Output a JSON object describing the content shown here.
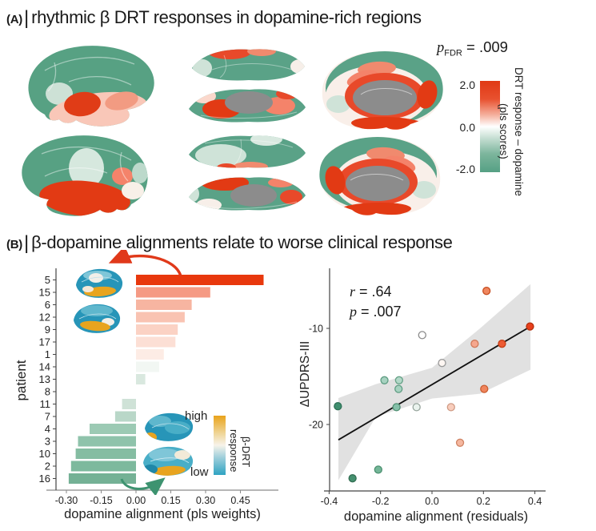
{
  "panelA": {
    "label": "(A)",
    "divider": "|",
    "title": "rhythmic β DRT responses in dopamine-rich regions",
    "stat": {
      "symbol": "p",
      "sub": "FDR",
      "value": " = .009"
    },
    "colorbar": {
      "tick_top": "2.0",
      "tick_mid": "0.0",
      "tick_bottom": "-2.0",
      "label_primary": "DRT response – dopamine",
      "label_secondary": "(pls scores)",
      "color_top": "#e03914",
      "color_mid": "#ffffff",
      "color_bottom": "#55a084",
      "excluded_color": "#8c8c8c"
    }
  },
  "panelB": {
    "label": "(B)",
    "divider": "|",
    "title": "β-dopamine alignments relate to worse clinical response",
    "inset_colorbar": {
      "high_label": "high",
      "low_label": "low",
      "label_line1": "β-DRT",
      "label_line2": "response",
      "color_high": "#e9a31b",
      "color_low": "#2fa3c2"
    },
    "scatter_stats": {
      "r_symbol": "r",
      "r_value": " = .64",
      "p_symbol": "p",
      "p_value": " = .007"
    }
  },
  "chart_data": [
    {
      "type": "bar",
      "orientation": "horizontal",
      "ylabel": "patient",
      "xlabel": "dopamine alignment (pls weights)",
      "categories": [
        "5",
        "15",
        "6",
        "12",
        "9",
        "17",
        "1",
        "14",
        "13",
        "8",
        "11",
        "7",
        "4",
        "3",
        "10",
        "2",
        "16"
      ],
      "values": [
        0.55,
        0.32,
        0.24,
        0.21,
        0.18,
        0.17,
        0.12,
        0.1,
        0.04,
        0,
        -0.06,
        -0.09,
        -0.2,
        -0.25,
        -0.26,
        -0.28,
        -0.29
      ],
      "colors": [
        "#e8380d",
        "#f59a84",
        "#f7b5a1",
        "#f9c3b2",
        "#fbd2c4",
        "#fcdfd5",
        "#fdece5",
        "#f2f7f3",
        "#d9e8df",
        "#ffffff",
        "#cfe2d7",
        "#b9d7c8",
        "#9ccab4",
        "#8fc3ab",
        "#85bda2",
        "#7db99d",
        "#74b195"
      ],
      "xticks": [
        "-0.30",
        "-0.15",
        "0.00",
        "0.15",
        "0.30",
        "0.45"
      ],
      "xlim": [
        -0.38,
        0.6
      ],
      "grid": false
    },
    {
      "type": "scatter",
      "xlabel": "dopamine alignment (residuals)",
      "ylabel": "ΔUPDRS-III",
      "xticks": [
        "-0.4",
        "-0.2",
        "0.0",
        "0.2",
        "0.4"
      ],
      "yticks": [
        "-10",
        "-20"
      ],
      "xlim": [
        -0.45,
        0.45
      ],
      "ylim": [
        -27,
        -5
      ],
      "annotation": {
        "r": "r = .64",
        "p": "p = .007"
      },
      "regression": {
        "x1": -0.364,
        "y1": -21.6,
        "x2": 0.383,
        "y2": -9.8
      },
      "ci_band": [
        [
          -0.364,
          -17.25
        ],
        [
          -0.218,
          -15.8
        ],
        [
          0,
          -14.1
        ],
        [
          0.187,
          -10.0
        ],
        [
          0.383,
          -5.4
        ],
        [
          0.383,
          -14.3
        ],
        [
          0.187,
          -16.8
        ],
        [
          0,
          -17.3
        ],
        [
          -0.218,
          -19.2
        ],
        [
          -0.364,
          -25.8
        ]
      ],
      "points": [
        {
          "x": 0.212,
          "y": -6.1,
          "fill": "#f0875f",
          "stroke": "#c84f22"
        },
        {
          "x": 0.381,
          "y": -9.8,
          "fill": "#e8401c",
          "stroke": "#b22f0c"
        },
        {
          "x": -0.038,
          "y": -10.7,
          "fill": "#ffffff",
          "stroke": "#8a8a8a"
        },
        {
          "x": 0.166,
          "y": -11.6,
          "fill": "#f5a78e",
          "stroke": "#d07a5a"
        },
        {
          "x": 0.272,
          "y": -11.6,
          "fill": "#ed5b33",
          "stroke": "#c53f16"
        },
        {
          "x": 0.039,
          "y": -13.6,
          "fill": "#fdf6f2",
          "stroke": "#9a9a9a"
        },
        {
          "x": -0.185,
          "y": -15.4,
          "fill": "#a7d2c0",
          "stroke": "#5e9c82"
        },
        {
          "x": -0.128,
          "y": -15.4,
          "fill": "#b3d8c8",
          "stroke": "#66a287"
        },
        {
          "x": -0.13,
          "y": -16.3,
          "fill": "#a7d2c0",
          "stroke": "#5e9c82"
        },
        {
          "x": 0.203,
          "y": -16.3,
          "fill": "#f0855d",
          "stroke": "#c95c2f"
        },
        {
          "x": -0.366,
          "y": -18.1,
          "fill": "#3f8e6e",
          "stroke": "#2f7257"
        },
        {
          "x": -0.138,
          "y": -18.2,
          "fill": "#85c0a9",
          "stroke": "#4f8f72"
        },
        {
          "x": -0.06,
          "y": -18.2,
          "fill": "#eaf3ee",
          "stroke": "#97a59d"
        },
        {
          "x": 0.074,
          "y": -18.2,
          "fill": "#f8cdbc",
          "stroke": "#cf9a84"
        },
        {
          "x": 0.109,
          "y": -21.9,
          "fill": "#f5b79f",
          "stroke": "#d08465"
        },
        {
          "x": -0.209,
          "y": -24.7,
          "fill": "#74b698",
          "stroke": "#4a8f6f"
        },
        {
          "x": -0.309,
          "y": -25.6,
          "fill": "#45906f",
          "stroke": "#336f54"
        }
      ]
    }
  ]
}
